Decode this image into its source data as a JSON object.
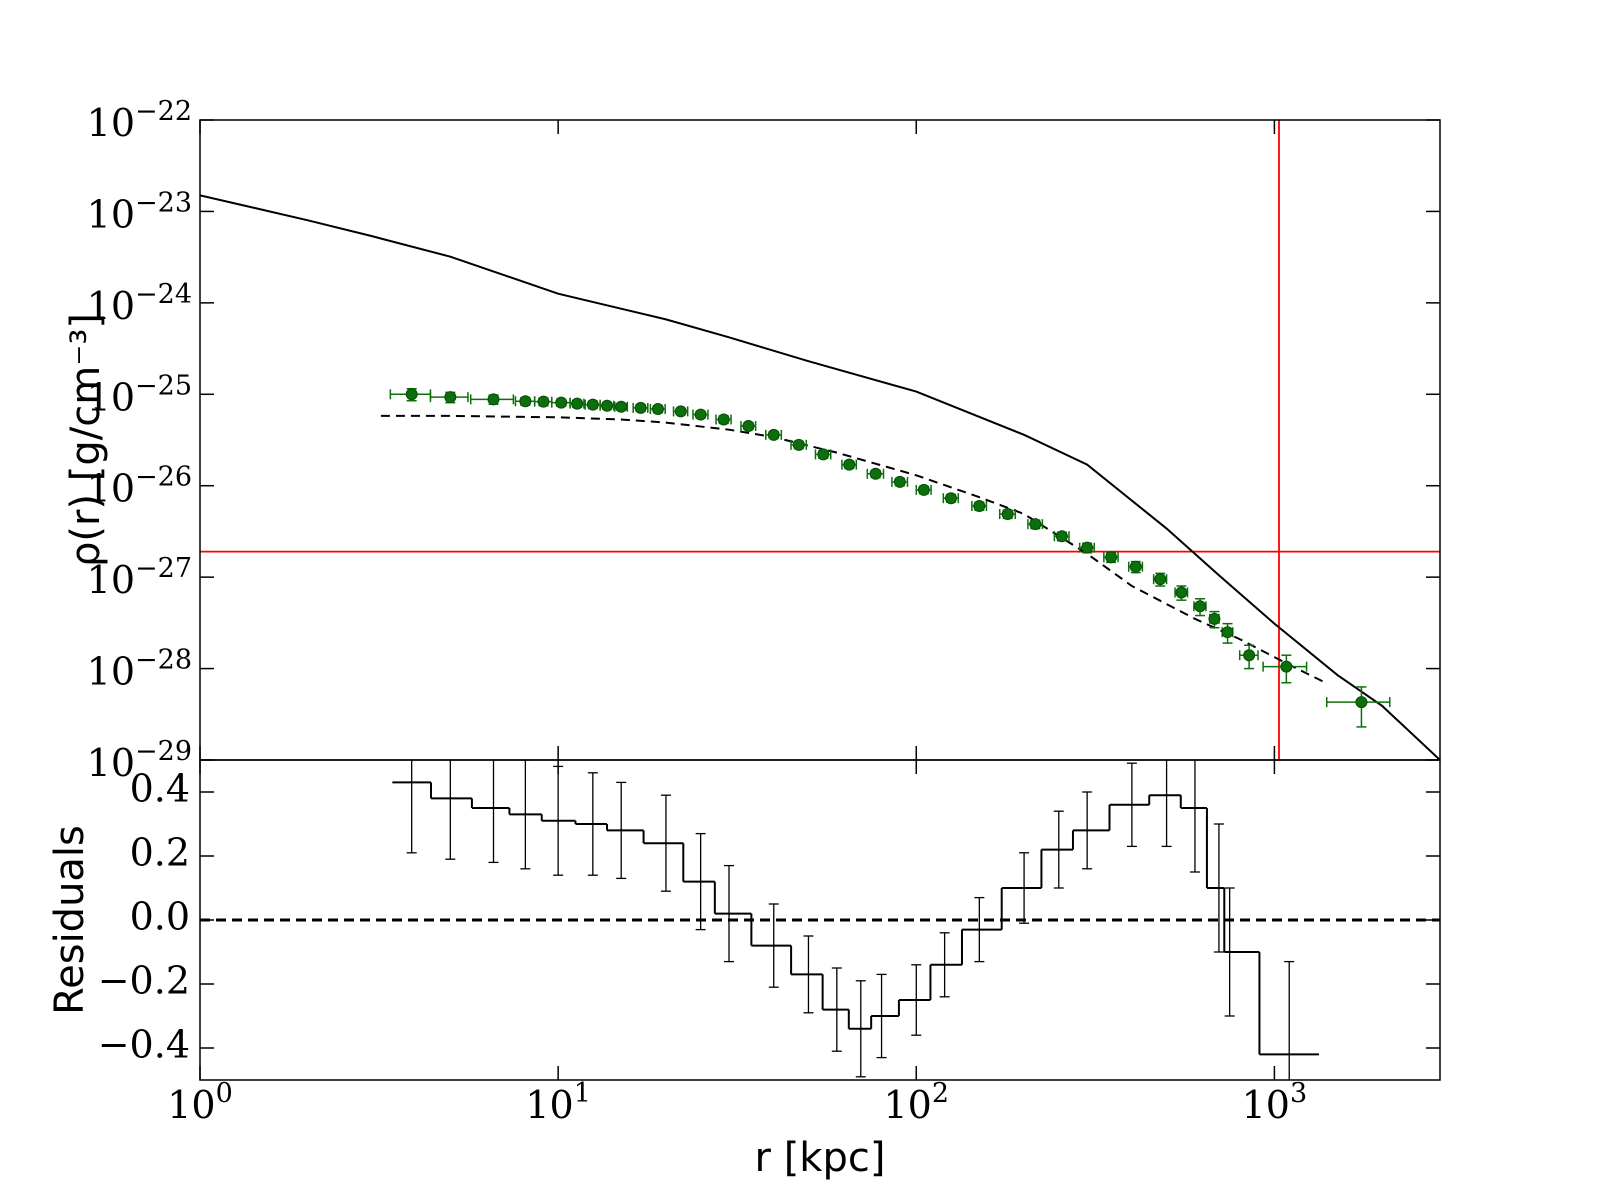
{
  "chart_data": [
    {
      "type": "errorbar",
      "xscale": "log",
      "yscale": "log",
      "ylabel": "ρ(r) [g/cm⁻³]",
      "xlim": [
        1,
        2900
      ],
      "ylim": [
        1e-29,
        1e-22
      ],
      "xticks": [
        1,
        10,
        100,
        1000
      ],
      "yticks": [
        {
          "value": 1e-22,
          "label": "10",
          "exponent": "−22"
        },
        {
          "value": 1e-23,
          "label": "10",
          "exponent": "−23"
        },
        {
          "value": 1e-24,
          "label": "10",
          "exponent": "−24"
        },
        {
          "value": 1e-25,
          "label": "10",
          "exponent": "−25"
        },
        {
          "value": 1e-26,
          "label": "10",
          "exponent": "−26"
        },
        {
          "value": 1e-27,
          "label": "10",
          "exponent": "−27"
        },
        {
          "value": 1e-28,
          "label": "10",
          "exponent": "−28"
        },
        {
          "value": 1e-29,
          "label": "10",
          "exponent": "−29"
        }
      ],
      "hlines": [
        {
          "value": 1.9e-27,
          "color": "#ff0000"
        }
      ],
      "vlines": [
        {
          "value": 1030,
          "color": "#ff0000"
        }
      ],
      "series": [
        {
          "style": "solid",
          "color": "#000000",
          "x": [
            1,
            2,
            3,
            5,
            10,
            20,
            30,
            50,
            100,
            200,
            300,
            500,
            700,
            1000,
            1500,
            2000,
            2900
          ],
          "values": [
            1.5e-23,
            8e-24,
            5.4e-24,
            3.2e-24,
            1.26e-24,
            6.6e-25,
            4.2e-25,
            2.3e-25,
            1.07e-25,
            3.6e-26,
            1.7e-26,
            3.4e-27,
            1.05e-27,
            3.1e-28,
            8.5e-29,
            3.9e-29,
            1e-29
          ]
        },
        {
          "style": "dashed",
          "color": "#000000",
          "x": [
            3.2,
            5,
            10,
            15,
            20,
            30,
            40,
            60,
            100,
            150,
            200,
            300,
            400,
            600,
            800,
            1100,
            1400
          ],
          "values": [
            5.8e-26,
            5.8e-26,
            5.6e-26,
            5.3e-26,
            4.9e-26,
            4.1e-26,
            3.4e-26,
            2.3e-26,
            1.3e-26,
            7.5e-27,
            4.9e-27,
            1.8e-27,
            8e-28,
            3.5e-28,
            2.1e-28,
            1.1e-28,
            6.9e-29
          ]
        },
        {
          "style": "points",
          "color": "#0b700b",
          "x": [
            3.9,
            5.0,
            6.6,
            8.1,
            9.1,
            10.2,
            11.3,
            12.5,
            13.7,
            15,
            17,
            19,
            22,
            25,
            29,
            34,
            40,
            47,
            55,
            65,
            77,
            90,
            105,
            125,
            150,
            180,
            215,
            255,
            300,
            350,
            410,
            480,
            550,
            620,
            680,
            740,
            850,
            1080,
            1750
          ],
          "values": [
            1e-25,
            9.3e-26,
            8.8e-26,
            8.4e-26,
            8.3e-26,
            8.1e-26,
            7.9e-26,
            7.7e-26,
            7.5e-26,
            7.3e-26,
            7.1e-26,
            6.9e-26,
            6.5e-26,
            6e-26,
            5.3e-26,
            4.5e-26,
            3.6e-26,
            2.8e-26,
            2.2e-26,
            1.7e-26,
            1.35e-26,
            1.1e-26,
            9e-27,
            7.3e-27,
            6e-27,
            4.9e-27,
            3.8e-27,
            2.8e-27,
            2.1e-27,
            1.65e-27,
            1.3e-27,
            9.5e-28,
            6.8e-28,
            4.8e-28,
            3.5e-28,
            2.5e-28,
            1.4e-28,
            1.05e-28,
            4.3e-29
          ],
          "yerr": [
            1.5e-26,
            1.2e-26,
            1e-26,
            8e-27,
            8e-27,
            7e-27,
            7e-27,
            7e-27,
            6e-27,
            6e-27,
            6e-27,
            6e-27,
            5e-27,
            5e-27,
            5e-27,
            4e-27,
            3e-27,
            2.5e-27,
            2e-27,
            1.5e-27,
            1.2e-27,
            1e-27,
            8e-28,
            7e-28,
            6e-28,
            5e-28,
            4e-28,
            3e-28,
            2.5e-28,
            2e-28,
            1.8e-28,
            1.5e-28,
            1.2e-28,
            1e-28,
            7e-29,
            6e-29,
            4e-29,
            3.5e-29,
            2e-29
          ],
          "xerr": [
            0.5,
            0.6,
            0.9,
            0.5,
            0.5,
            0.6,
            0.5,
            0.6,
            0.6,
            0.6,
            0.8,
            0.9,
            1,
            1.2,
            1.4,
            1.6,
            2,
            2.3,
            2.7,
            3,
            4,
            4.5,
            5,
            6,
            7,
            9,
            10,
            12,
            14,
            16,
            18,
            20,
            22,
            24,
            20,
            25,
            50,
            150,
            350
          ]
        }
      ]
    },
    {
      "type": "step",
      "xscale": "log",
      "xlabel": "r [kpc]",
      "ylabel": "Residuals",
      "xlim": [
        1,
        2900
      ],
      "ylim": [
        -0.5,
        0.5
      ],
      "xticks": [
        {
          "value": 1,
          "label": "10",
          "exponent": "0"
        },
        {
          "value": 10,
          "label": "10",
          "exponent": "1"
        },
        {
          "value": 100,
          "label": "10",
          "exponent": "2"
        },
        {
          "value": 1000,
          "label": "10",
          "exponent": "3"
        }
      ],
      "yticks": [
        0.4,
        0.2,
        {
          "value": 0,
          "label": "0.0"
        },
        {
          "value": -0.2,
          "label": "−0.2"
        },
        {
          "value": -0.4,
          "label": "−0.4"
        }
      ],
      "hlines": [
        {
          "value": 0,
          "color": "#000000",
          "style": "dashed"
        }
      ],
      "series": [
        {
          "color": "#000000",
          "x": [
            3.9,
            5.0,
            6.6,
            8.1,
            10,
            12.5,
            15,
            20,
            25,
            30,
            40,
            50,
            60,
            70,
            80,
            100,
            120,
            150,
            200,
            250,
            300,
            400,
            500,
            600,
            700,
            750,
            1100
          ],
          "values": [
            0.43,
            0.38,
            0.35,
            0.33,
            0.31,
            0.3,
            0.28,
            0.24,
            0.12,
            0.02,
            -0.08,
            -0.17,
            -0.28,
            -0.34,
            -0.3,
            -0.25,
            -0.14,
            -0.03,
            0.1,
            0.22,
            0.28,
            0.36,
            0.39,
            0.35,
            0.1,
            -0.1,
            -0.42
          ],
          "yerr": [
            0.22,
            0.19,
            0.17,
            0.17,
            0.17,
            0.16,
            0.15,
            0.15,
            0.15,
            0.15,
            0.13,
            0.12,
            0.13,
            0.15,
            0.13,
            0.11,
            0.1,
            0.1,
            0.11,
            0.12,
            0.12,
            0.13,
            0.16,
            0.2,
            0.2,
            0.2,
            0.29
          ]
        }
      ]
    }
  ]
}
